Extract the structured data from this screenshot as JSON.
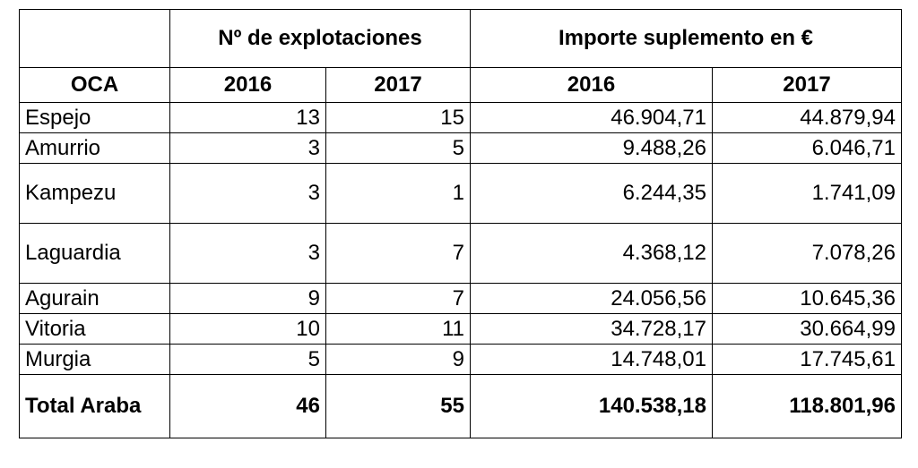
{
  "table": {
    "group_headers": {
      "blank": "",
      "explotaciones": "Nº de explotaciones",
      "importe": "Importe suplemento en €"
    },
    "year_headers": {
      "oca": "OCA",
      "exp_2016": "2016",
      "exp_2017": "2017",
      "imp_2016": "2016",
      "imp_2017": "2017"
    },
    "rows": [
      {
        "oca": "Espejo",
        "exp_2016": "13",
        "exp_2017": "15",
        "imp_2016": "46.904,71",
        "imp_2017": "44.879,94"
      },
      {
        "oca": "Amurrio",
        "exp_2016": "3",
        "exp_2017": "5",
        "imp_2016": "9.488,26",
        "imp_2017": "6.046,71"
      },
      {
        "oca": "Kampezu",
        "exp_2016": "3",
        "exp_2017": "1",
        "imp_2016": "6.244,35",
        "imp_2017": "1.741,09"
      },
      {
        "oca": "Laguardia",
        "exp_2016": "3",
        "exp_2017": "7",
        "imp_2016": "4.368,12",
        "imp_2017": "7.078,26"
      },
      {
        "oca": "Agurain",
        "exp_2016": "9",
        "exp_2017": "7",
        "imp_2016": "24.056,56",
        "imp_2017": "10.645,36"
      },
      {
        "oca": "Vitoria",
        "exp_2016": "10",
        "exp_2017": "11",
        "imp_2016": "34.728,17",
        "imp_2017": "30.664,99"
      },
      {
        "oca": "Murgia",
        "exp_2016": "5",
        "exp_2017": "9",
        "imp_2016": "14.748,01",
        "imp_2017": "17.745,61"
      }
    ],
    "total": {
      "oca": "Total Araba",
      "exp_2016": "46",
      "exp_2017": "55",
      "imp_2016": "140.538,18",
      "imp_2017": "118.801,96"
    }
  }
}
